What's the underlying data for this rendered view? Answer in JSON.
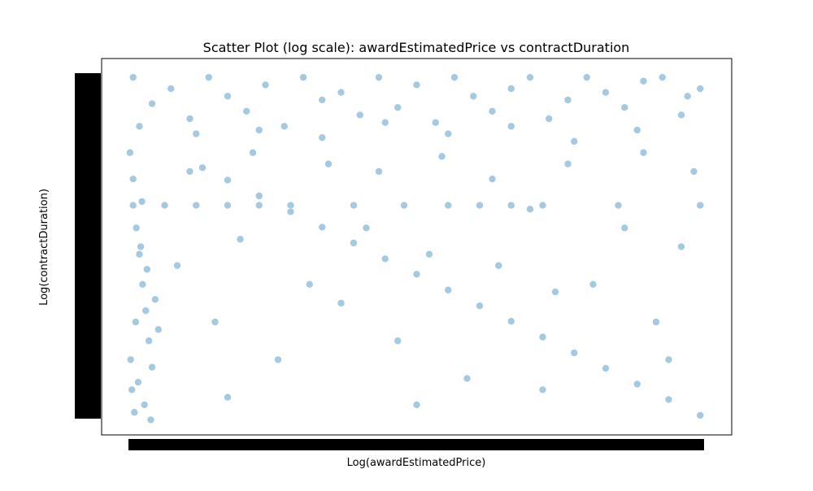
{
  "chart_data": {
    "type": "scatter",
    "title": "Scatter Plot (log scale): awardEstimatedPrice vs contractDuration",
    "x_label": "Log(awardEstimatedPrice)",
    "y_label": "Log(contractDuration)",
    "color": "#1f77b4",
    "xlim": [
      0,
      100
    ],
    "ylim": [
      0,
      100
    ],
    "x": [
      5,
      8,
      11,
      14,
      17,
      20,
      23,
      26,
      29,
      32,
      35,
      38,
      41,
      44,
      47,
      50,
      53,
      56,
      59,
      62,
      65,
      68,
      71,
      74,
      77,
      80,
      83,
      86,
      89,
      92,
      95,
      6,
      15,
      25,
      35,
      45,
      55,
      65,
      75,
      85,
      93,
      5,
      10,
      15,
      20,
      25,
      30,
      40,
      48,
      55,
      60,
      65,
      70,
      82,
      95,
      16,
      20,
      25,
      30,
      35,
      40,
      45,
      50,
      55,
      60,
      65,
      70,
      75,
      80,
      85,
      90,
      95,
      4.5,
      5,
      5.5,
      6,
      6.5,
      7,
      7.5,
      8,
      4.8,
      5.2,
      6.2,
      7.2,
      8.5,
      9,
      4.6,
      5.8,
      6.8,
      7.8,
      5.4,
      6.4,
      12,
      18,
      22,
      28,
      33,
      38,
      42,
      47,
      52,
      58,
      63,
      68,
      72,
      78,
      83,
      88,
      92,
      14,
      24,
      36,
      44,
      54,
      62,
      74,
      86,
      94,
      20,
      50,
      70,
      90
    ],
    "y": [
      95,
      88,
      92,
      84,
      95,
      90,
      86,
      93,
      82,
      95,
      89,
      91,
      85,
      95,
      87,
      93,
      83,
      95,
      90,
      86,
      92,
      95,
      84,
      89,
      95,
      91,
      87,
      94,
      95,
      85,
      92,
      82,
      80,
      81,
      79,
      83,
      80,
      82,
      78,
      81,
      90,
      61,
      61,
      61,
      61,
      61,
      61,
      61,
      61,
      61,
      61,
      61,
      61,
      61,
      61,
      71,
      67.7,
      63.5,
      59.3,
      55.2,
      51,
      46.8,
      42.7,
      38.5,
      34.3,
      30.2,
      26,
      21.8,
      17.7,
      13.5,
      9.4,
      5.2,
      75,
      68,
      55,
      48,
      40,
      33,
      25,
      18,
      12,
      6,
      50,
      44,
      36,
      28,
      20,
      14,
      8,
      4,
      30,
      62,
      45,
      30,
      52,
      20,
      40,
      35,
      55,
      25,
      48,
      15,
      45,
      60,
      38,
      40,
      55,
      30,
      50,
      70,
      75,
      72,
      70,
      74,
      68,
      72,
      75,
      70,
      10,
      8,
      12,
      20
    ]
  }
}
